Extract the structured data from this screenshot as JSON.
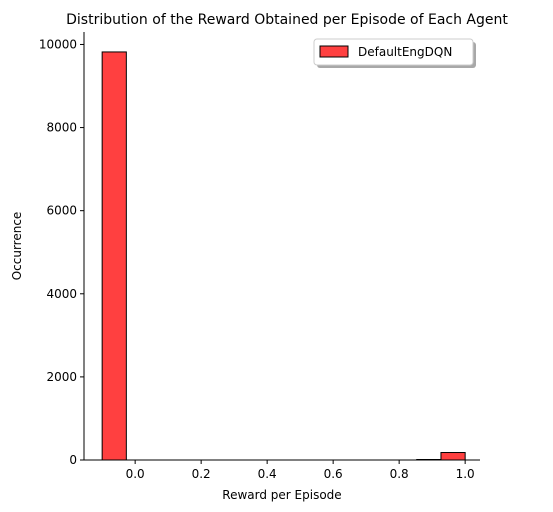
{
  "chart_data": {
    "type": "bar",
    "title": "Distribution of the Reward Obtained per Episode of Each Agent",
    "xlabel": "Reward per Episode",
    "ylabel": "Occurrence",
    "xlim": [
      -0.155,
      1.045
    ],
    "ylim": [
      0,
      10300
    ],
    "xticks": [
      0.0,
      0.2,
      0.4,
      0.6,
      0.8,
      1.0
    ],
    "xtick_labels": [
      "0.0",
      "0.2",
      "0.4",
      "0.6",
      "0.8",
      "1.0"
    ],
    "yticks": [
      0,
      2000,
      4000,
      6000,
      8000,
      10000
    ],
    "ytick_labels": [
      "0",
      "2000",
      "4000",
      "6000",
      "8000",
      "10000"
    ],
    "legend_position": "top-right",
    "grid": false,
    "series": [
      {
        "name": "DefaultEngDQN",
        "color": "#ff4040",
        "edge_color": "#000000",
        "bins": [
          {
            "x0": -0.1,
            "x1": -0.0267,
            "value": 9820
          },
          {
            "x0": -0.0267,
            "x1": 0.0467,
            "value": 0
          },
          {
            "x0": 0.0467,
            "x1": 0.12,
            "value": 0
          },
          {
            "x0": 0.12,
            "x1": 0.1933,
            "value": 0
          },
          {
            "x0": 0.1933,
            "x1": 0.2667,
            "value": 0
          },
          {
            "x0": 0.2667,
            "x1": 0.34,
            "value": 0
          },
          {
            "x0": 0.34,
            "x1": 0.4133,
            "value": 0
          },
          {
            "x0": 0.4133,
            "x1": 0.4867,
            "value": 0
          },
          {
            "x0": 0.4867,
            "x1": 0.56,
            "value": 0
          },
          {
            "x0": 0.56,
            "x1": 0.6333,
            "value": 0
          },
          {
            "x0": 0.6333,
            "x1": 0.7067,
            "value": 0
          },
          {
            "x0": 0.7067,
            "x1": 0.78,
            "value": 0
          },
          {
            "x0": 0.78,
            "x1": 0.8533,
            "value": 0
          },
          {
            "x0": 0.8533,
            "x1": 0.9267,
            "value": 12
          },
          {
            "x0": 0.9267,
            "x1": 1.0,
            "value": 180
          }
        ]
      }
    ]
  }
}
